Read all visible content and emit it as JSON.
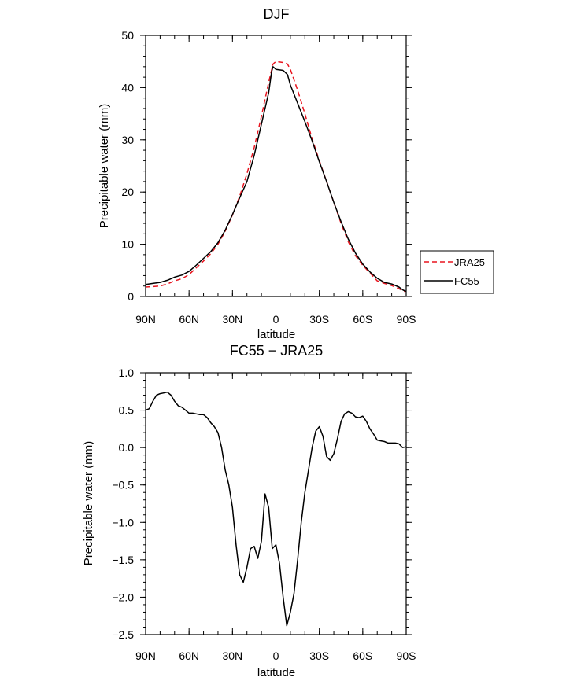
{
  "colors": {
    "fc55": "#000000",
    "jra25": "#e8141e"
  },
  "chart_data": [
    {
      "type": "line",
      "title": "DJF",
      "xlabel": "latitude",
      "ylabel": "Precipitable water (mm)",
      "xlim": [
        90,
        -90
      ],
      "ylim": [
        0,
        50
      ],
      "xticks": [
        90,
        60,
        30,
        0,
        -30,
        -60,
        -90
      ],
      "xtick_labels": [
        "90N",
        "60N",
        "30N",
        "0",
        "30S",
        "60S",
        "90S"
      ],
      "yticks": [
        0,
        10,
        20,
        30,
        40,
        50
      ],
      "ytick_labels": [
        "0",
        "10",
        "20",
        "30",
        "40",
        "50"
      ],
      "legend": {
        "position": "right",
        "entries": [
          "JRA25",
          "FC55"
        ]
      },
      "series": [
        {
          "name": "JRA25",
          "style": "dashed",
          "x": [
            90,
            85,
            80,
            75,
            70,
            65,
            60,
            55,
            50,
            45,
            40,
            35,
            30,
            25,
            20,
            15,
            10,
            5,
            2,
            0,
            -5,
            -8,
            -10,
            -15,
            -20,
            -25,
            -30,
            -35,
            -40,
            -45,
            -50,
            -55,
            -60,
            -65,
            -70,
            -75,
            -80,
            -85,
            -88,
            -90
          ],
          "values": [
            1.8,
            1.9,
            2.0,
            2.4,
            3.0,
            3.4,
            4.2,
            5.5,
            6.8,
            8.2,
            10.0,
            12.5,
            15.6,
            19.2,
            23.5,
            28.5,
            34.5,
            41.0,
            44.5,
            45.0,
            44.8,
            44.5,
            43.5,
            39.5,
            35.0,
            30.2,
            26.0,
            22.0,
            18.0,
            14.0,
            10.5,
            7.8,
            6.0,
            4.5,
            3.0,
            2.5,
            2.1,
            1.5,
            1.0,
            1.0
          ]
        },
        {
          "name": "FC55",
          "style": "solid",
          "x": [
            90,
            85,
            80,
            75,
            70,
            65,
            60,
            55,
            50,
            45,
            40,
            35,
            30,
            25,
            20,
            15,
            10,
            5,
            3,
            2,
            0,
            -5,
            -8,
            -10,
            -15,
            -20,
            -25,
            -30,
            -35,
            -40,
            -45,
            -50,
            -55,
            -60,
            -65,
            -70,
            -75,
            -80,
            -85,
            -88,
            -90
          ],
          "values": [
            2.3,
            2.5,
            2.7,
            3.1,
            3.7,
            4.1,
            4.8,
            6.0,
            7.3,
            8.6,
            10.3,
            12.7,
            15.7,
            18.9,
            22.0,
            27.0,
            33.0,
            39.0,
            43.0,
            44.0,
            43.5,
            43.3,
            42.5,
            40.5,
            37.0,
            33.5,
            29.8,
            25.8,
            22.0,
            18.0,
            14.3,
            11.0,
            8.3,
            6.2,
            4.7,
            3.5,
            2.7,
            2.4,
            1.8,
            1.2,
            1.0
          ]
        }
      ]
    },
    {
      "type": "line",
      "title": "FC55 − JRA25",
      "xlabel": "latitude",
      "ylabel": "Precipitable water (mm)",
      "xlim": [
        90,
        -90
      ],
      "ylim": [
        -2.5,
        1.0
      ],
      "xticks": [
        90,
        60,
        30,
        0,
        -30,
        -60,
        -90
      ],
      "xtick_labels": [
        "90N",
        "60N",
        "30N",
        "0",
        "30S",
        "60S",
        "90S"
      ],
      "yticks": [
        -2.5,
        -2.0,
        -1.5,
        -1.0,
        -0.5,
        0.0,
        0.5,
        1.0
      ],
      "ytick_labels": [
        "−2.5",
        "−2.0",
        "−1.5",
        "−1.0",
        "−0.5",
        "0.0",
        "0.5",
        "1.0"
      ],
      "series": [
        {
          "style": "solid",
          "x": [
            90,
            87.5,
            85,
            82.5,
            80,
            77.5,
            75,
            72.5,
            70,
            67.5,
            65,
            62.5,
            60,
            57.5,
            55,
            52.5,
            50,
            47.5,
            45,
            42.5,
            40,
            37.5,
            35,
            32.5,
            30,
            27.5,
            25,
            22.5,
            20,
            17.5,
            15,
            12.5,
            10,
            7.5,
            5,
            2.5,
            0,
            -2.5,
            -5,
            -7.5,
            -10,
            -12.5,
            -15,
            -17.5,
            -20,
            -22.5,
            -25,
            -27.5,
            -30,
            -32.5,
            -35,
            -37.5,
            -40,
            -42.5,
            -45,
            -47.5,
            -50,
            -52.5,
            -55,
            -57.5,
            -60,
            -62.5,
            -65,
            -67.5,
            -70,
            -72.5,
            -75,
            -77.5,
            -80,
            -82.5,
            -85,
            -87.5,
            -90
          ],
          "values": [
            0.5,
            0.52,
            0.62,
            0.7,
            0.72,
            0.73,
            0.74,
            0.7,
            0.62,
            0.56,
            0.54,
            0.5,
            0.46,
            0.46,
            0.45,
            0.44,
            0.44,
            0.4,
            0.33,
            0.28,
            0.2,
            0.0,
            -0.3,
            -0.5,
            -0.8,
            -1.3,
            -1.7,
            -1.8,
            -1.6,
            -1.35,
            -1.32,
            -1.48,
            -1.25,
            -0.62,
            -0.8,
            -1.35,
            -1.3,
            -1.55,
            -2.0,
            -2.38,
            -2.2,
            -1.95,
            -1.5,
            -1.0,
            -0.6,
            -0.3,
            0.0,
            0.22,
            0.28,
            0.15,
            -0.12,
            -0.17,
            -0.08,
            0.12,
            0.35,
            0.45,
            0.48,
            0.46,
            0.41,
            0.4,
            0.42,
            0.35,
            0.25,
            0.18,
            0.1,
            0.09,
            0.08,
            0.06,
            0.06,
            0.06,
            0.05,
            0.0,
            0.01
          ]
        }
      ]
    }
  ]
}
